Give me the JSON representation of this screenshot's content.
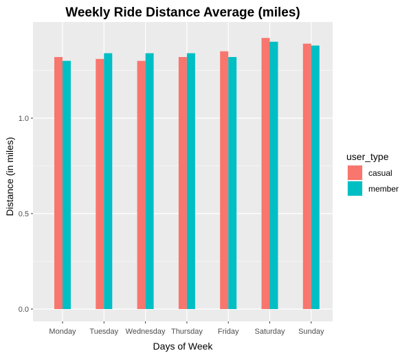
{
  "chart_data": {
    "type": "bar",
    "title": "Weekly Ride Distance Average (miles)",
    "xlabel": "Days of Week",
    "ylabel": "Distance (in miles)",
    "categories": [
      "Monday",
      "Tuesday",
      "Wednesday",
      "Thursday",
      "Friday",
      "Saturday",
      "Sunday"
    ],
    "series": [
      {
        "name": "casual",
        "values": [
          1.32,
          1.31,
          1.3,
          1.32,
          1.35,
          1.42,
          1.39
        ],
        "color": "#F8766D"
      },
      {
        "name": "member",
        "values": [
          1.3,
          1.34,
          1.34,
          1.34,
          1.32,
          1.4,
          1.38
        ],
        "color": "#00BFC4"
      }
    ],
    "ylim": [
      0,
      1.5
    ],
    "yticks": [
      0.0,
      0.5,
      1.0
    ],
    "ytick_labels": [
      "0.0",
      "0.5",
      "1.0"
    ],
    "grid": true,
    "legend": {
      "title": "user_type",
      "position": "right"
    }
  }
}
